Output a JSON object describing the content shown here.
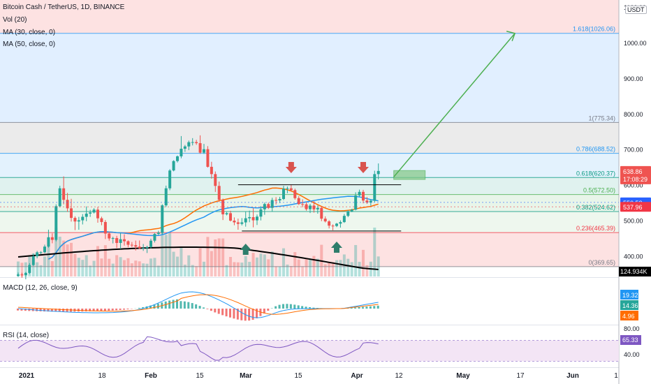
{
  "legend": {
    "symbol": "Bitcoin Cash / TetherUS, 1D, BINANCE",
    "vol": "Vol (20)",
    "ma30": "MA (30, close, 0)",
    "ma50": "MA (50, close, 0)",
    "macd": "MACD (12, 26, close, 9)",
    "rsi": "RSI (14, close)"
  },
  "currency_label": "USDT",
  "price_axis": {
    "ticks": [
      {
        "value": 1100,
        "label": "1100.00"
      },
      {
        "value": 1000,
        "label": "1000.00"
      },
      {
        "value": 900,
        "label": "900.00"
      },
      {
        "value": 800,
        "label": "800.00"
      },
      {
        "value": 700,
        "label": "700.00"
      },
      {
        "value": 600,
        "label": "600.00"
      },
      {
        "value": 500,
        "label": "500.00"
      },
      {
        "value": 400,
        "label": "400.00"
      }
    ]
  },
  "price_badges": [
    {
      "id": "last",
      "value": 638.86,
      "label": "638.86",
      "sublabel": "17:08:29",
      "color": "#ef5350"
    },
    {
      "id": "ma50",
      "value": 550.53,
      "label": "550.53",
      "color": "#2962ff"
    },
    {
      "id": "ma30",
      "value": 537.96,
      "label": "537.96",
      "color": "#f23645"
    }
  ],
  "volume_badge": {
    "label": "124.934K",
    "color": "#000000"
  },
  "fib_levels": [
    {
      "ratio": 1.618,
      "value": 1026.06,
      "label": "1.618(1026.06)",
      "color": "#2196f3"
    },
    {
      "ratio": 1,
      "value": 775.34,
      "label": "1(775.34)",
      "color": "#787b86"
    },
    {
      "ratio": 0.786,
      "value": 688.52,
      "label": "0.786(688.52)",
      "color": "#2196f3"
    },
    {
      "ratio": 0.618,
      "value": 620.37,
      "label": "0.618(620.37)",
      "color": "#089981"
    },
    {
      "ratio": 0.5,
      "value": 572.5,
      "label": "0.5(572.50)",
      "color": "#4caf50"
    },
    {
      "ratio": 0.382,
      "value": 524.62,
      "label": "0.382(524.62)",
      "color": "#089981"
    },
    {
      "ratio": 0.236,
      "value": 465.39,
      "label": "0.236(465.39)",
      "color": "#f23645"
    },
    {
      "ratio": 0,
      "value": 369.65,
      "label": "0(369.65)",
      "color": "#787b86"
    }
  ],
  "time_axis": {
    "labels": [
      "2021",
      "18",
      "Feb",
      "15",
      "Mar",
      "15",
      "Apr",
      "12",
      "May",
      "17",
      "Jun",
      "1"
    ]
  },
  "macd_badges": [
    {
      "label": "19.32",
      "color": "#2196f3"
    },
    {
      "label": "14.36",
      "color": "#26a69a"
    },
    {
      "label": "4.96",
      "color": "#ff6d00"
    }
  ],
  "rsi_axis": {
    "ticks": [
      "80.00",
      "40.00"
    ]
  },
  "rsi_badge": {
    "label": "65.33",
    "color": "#7e57c2"
  },
  "colors": {
    "up": "#26a69a",
    "down": "#ef5350",
    "ma30": "#ff6d00",
    "ma50": "#2196f3",
    "vol_ma": "#000000",
    "target_arrow": "#4caf50",
    "rsi_line": "#7e57c2",
    "rsi_band": "#f3e5f5"
  },
  "chart_data": {
    "type": "candlestick",
    "title": "Bitcoin Cash / TetherUS, 1D, BINANCE",
    "ylim": [
      340,
      1110
    ],
    "x_start": "2021-01-01",
    "x_end": "2021-06-04",
    "ohlc_weekly_approx": [
      {
        "date": "2021-01-01",
        "o": 344,
        "h": 360,
        "l": 330,
        "c": 352
      },
      {
        "date": "2021-01-04",
        "o": 352,
        "h": 420,
        "l": 345,
        "c": 410
      },
      {
        "date": "2021-01-08",
        "o": 410,
        "h": 470,
        "l": 400,
        "c": 445
      },
      {
        "date": "2021-01-11",
        "o": 445,
        "h": 600,
        "l": 440,
        "c": 590
      },
      {
        "date": "2021-01-13",
        "o": 590,
        "h": 630,
        "l": 470,
        "c": 500
      },
      {
        "date": "2021-01-18",
        "o": 500,
        "h": 560,
        "l": 480,
        "c": 530
      },
      {
        "date": "2021-01-22",
        "o": 530,
        "h": 540,
        "l": 430,
        "c": 450
      },
      {
        "date": "2021-01-27",
        "o": 450,
        "h": 470,
        "l": 410,
        "c": 430
      },
      {
        "date": "2021-02-01",
        "o": 430,
        "h": 450,
        "l": 410,
        "c": 425
      },
      {
        "date": "2021-02-05",
        "o": 425,
        "h": 470,
        "l": 420,
        "c": 465
      },
      {
        "date": "2021-02-08",
        "o": 465,
        "h": 600,
        "l": 460,
        "c": 590
      },
      {
        "date": "2021-02-10",
        "o": 590,
        "h": 690,
        "l": 585,
        "c": 680
      },
      {
        "date": "2021-02-13",
        "o": 680,
        "h": 770,
        "l": 650,
        "c": 720
      },
      {
        "date": "2021-02-17",
        "o": 720,
        "h": 760,
        "l": 680,
        "c": 700
      },
      {
        "date": "2021-02-20",
        "o": 700,
        "h": 720,
        "l": 600,
        "c": 630
      },
      {
        "date": "2021-02-22",
        "o": 630,
        "h": 650,
        "l": 500,
        "c": 520
      },
      {
        "date": "2021-02-26",
        "o": 520,
        "h": 540,
        "l": 470,
        "c": 490
      },
      {
        "date": "2021-03-01",
        "o": 490,
        "h": 530,
        "l": 465,
        "c": 500
      },
      {
        "date": "2021-03-05",
        "o": 500,
        "h": 545,
        "l": 480,
        "c": 535
      },
      {
        "date": "2021-03-09",
        "o": 535,
        "h": 570,
        "l": 520,
        "c": 560
      },
      {
        "date": "2021-03-12",
        "o": 560,
        "h": 600,
        "l": 530,
        "c": 590
      },
      {
        "date": "2021-03-14",
        "o": 590,
        "h": 605,
        "l": 530,
        "c": 545
      },
      {
        "date": "2021-03-18",
        "o": 545,
        "h": 560,
        "l": 520,
        "c": 535
      },
      {
        "date": "2021-03-22",
        "o": 535,
        "h": 545,
        "l": 470,
        "c": 485
      },
      {
        "date": "2021-03-25",
        "o": 485,
        "h": 500,
        "l": 460,
        "c": 495
      },
      {
        "date": "2021-03-28",
        "o": 495,
        "h": 535,
        "l": 490,
        "c": 530
      },
      {
        "date": "2021-03-31",
        "o": 530,
        "h": 590,
        "l": 525,
        "c": 580
      },
      {
        "date": "2021-04-02",
        "o": 580,
        "h": 600,
        "l": 540,
        "c": 550
      },
      {
        "date": "2021-04-04",
        "o": 550,
        "h": 560,
        "l": 540,
        "c": 555
      },
      {
        "date": "2021-04-05",
        "o": 555,
        "h": 640,
        "l": 550,
        "c": 630
      },
      {
        "date": "2021-04-06",
        "o": 630,
        "h": 660,
        "l": 615,
        "c": 638.86
      }
    ],
    "overlays": [
      {
        "name": "MA (30, close, 0)",
        "last": 537.96
      },
      {
        "name": "MA (50, close, 0)",
        "last": 550.53
      }
    ],
    "fibonacci_levels": [
      1.618,
      1,
      0.786,
      0.618,
      0.5,
      0.382,
      0.236,
      0
    ],
    "volume_last": "124.934K",
    "macd": {
      "params": "12, 26, close, 9",
      "macd": 19.32,
      "signal": 14.36,
      "histogram": 4.96
    },
    "rsi": {
      "params": "14, close",
      "value": 65.33,
      "ylim": [
        40,
        80
      ]
    }
  }
}
